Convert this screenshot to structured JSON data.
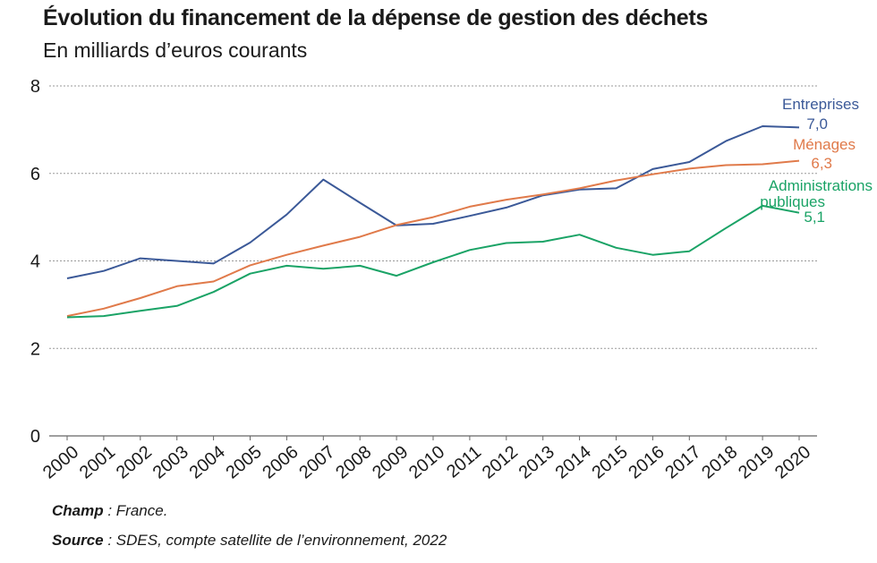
{
  "header": {
    "title": "Évolution du financement de la dépense de gestion des déchets",
    "subtitle": "En milliards d’euros courants"
  },
  "notes": {
    "champ_label": "Champ",
    "champ_text": " : France.",
    "source_label": "Source",
    "source_text": " : SDES, compte satellite de l’environnement, 2022"
  },
  "chart_data": {
    "type": "line",
    "title": "Évolution du financement de la dépense de gestion des déchets",
    "subtitle": "En milliards d’euros courants",
    "x": [
      "2000",
      "2001",
      "2002",
      "2003",
      "2004",
      "2005",
      "2006",
      "2007",
      "2008",
      "2009",
      "2010",
      "2011",
      "2012",
      "2013",
      "2014",
      "2015",
      "2016",
      "2017",
      "2018",
      "2019",
      "2020"
    ],
    "ylim": [
      0,
      8
    ],
    "yticks": [
      "0",
      "2",
      "4",
      "6",
      "8"
    ],
    "grid": true,
    "series": [
      {
        "name": "Entreprises",
        "end_label": "7,0",
        "color": "#3b5998",
        "values": [
          3.6,
          3.77,
          4.06,
          4.0,
          3.94,
          4.42,
          5.06,
          5.86,
          5.33,
          4.81,
          4.85,
          5.03,
          5.22,
          5.5,
          5.63,
          5.66,
          6.1,
          6.26,
          6.74,
          7.08,
          7.05
        ]
      },
      {
        "name": "Ménages",
        "end_label": "6,3",
        "color": "#e07a4a",
        "values": [
          2.74,
          2.91,
          3.15,
          3.42,
          3.53,
          3.9,
          4.14,
          4.35,
          4.55,
          4.82,
          5.0,
          5.24,
          5.4,
          5.52,
          5.66,
          5.84,
          5.98,
          6.11,
          6.19,
          6.21,
          6.29
        ]
      },
      {
        "name": "Administrations publiques",
        "end_label": "5,1",
        "color": "#1aa366",
        "values": [
          2.71,
          2.74,
          2.86,
          2.97,
          3.29,
          3.71,
          3.89,
          3.82,
          3.89,
          3.66,
          3.97,
          4.25,
          4.41,
          4.44,
          4.6,
          4.3,
          4.14,
          4.22,
          4.75,
          5.26,
          5.1
        ]
      }
    ]
  }
}
